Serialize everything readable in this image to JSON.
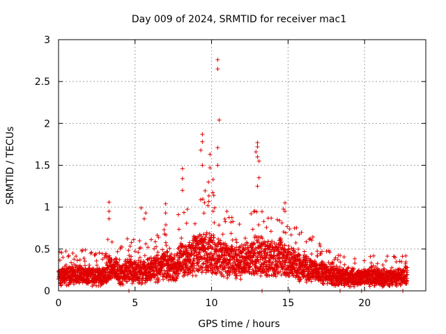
{
  "chart_data": {
    "type": "scatter",
    "title": "Day 009 of 2024, SRMTID for receiver mac1",
    "xlabel": "GPS time / hours",
    "ylabel": "SRMTID / TECUs",
    "xlim": [
      0,
      24
    ],
    "ylim": [
      0,
      3
    ],
    "xticks": [
      0,
      5,
      10,
      15,
      20
    ],
    "yticks": [
      0,
      0.5,
      1,
      1.5,
      2,
      2.5,
      3
    ],
    "xtick_labels": [
      "0",
      "5",
      "10",
      "15",
      "20"
    ],
    "ytick_labels": [
      "0",
      "0.5",
      "1",
      "1.5",
      "2",
      "2.5",
      "3"
    ],
    "grid": true,
    "marker": "plus",
    "color": "#e00000",
    "series": [
      {
        "name": "SRMTID",
        "profile_hours": [
          0,
          1,
          2,
          3,
          3.3,
          4,
          4.6,
          5,
          5.5,
          6,
          6.6,
          7,
          7.5,
          8,
          8.5,
          9,
          9.5,
          10,
          10.5,
          11,
          11.5,
          12,
          12.5,
          13,
          13.5,
          14,
          14.5,
          15,
          16,
          17,
          18,
          19,
          20,
          21,
          22,
          22.8
        ],
        "profile_median_tecu": [
          0.2,
          0.22,
          0.2,
          0.2,
          0.3,
          0.22,
          0.3,
          0.25,
          0.25,
          0.28,
          0.3,
          0.35,
          0.3,
          0.42,
          0.42,
          0.48,
          0.5,
          0.5,
          0.45,
          0.42,
          0.38,
          0.38,
          0.42,
          0.5,
          0.42,
          0.42,
          0.45,
          0.35,
          0.3,
          0.25,
          0.2,
          0.18,
          0.17,
          0.18,
          0.18,
          0.2
        ],
        "outliers": [
          {
            "x": 3.3,
            "y": 1.06
          },
          {
            "x": 3.3,
            "y": 0.95
          },
          {
            "x": 3.3,
            "y": 0.86
          },
          {
            "x": 5.4,
            "y": 0.99
          },
          {
            "x": 5.7,
            "y": 0.93
          },
          {
            "x": 5.6,
            "y": 0.86
          },
          {
            "x": 7.0,
            "y": 1.04
          },
          {
            "x": 7.0,
            "y": 0.93
          },
          {
            "x": 8.1,
            "y": 1.46
          },
          {
            "x": 8.1,
            "y": 1.34
          },
          {
            "x": 8.1,
            "y": 1.2
          },
          {
            "x": 9.4,
            "y": 1.87
          },
          {
            "x": 9.4,
            "y": 1.78
          },
          {
            "x": 9.3,
            "y": 1.68
          },
          {
            "x": 9.4,
            "y": 1.5
          },
          {
            "x": 9.9,
            "y": 1.63
          },
          {
            "x": 9.9,
            "y": 1.47
          },
          {
            "x": 9.8,
            "y": 1.3
          },
          {
            "x": 10.1,
            "y": 1.33
          },
          {
            "x": 10.4,
            "y": 2.76
          },
          {
            "x": 10.4,
            "y": 2.65
          },
          {
            "x": 10.5,
            "y": 2.04
          },
          {
            "x": 10.4,
            "y": 1.71
          },
          {
            "x": 10.4,
            "y": 1.5
          },
          {
            "x": 12.9,
            "y": 1.66
          },
          {
            "x": 13.0,
            "y": 1.77
          },
          {
            "x": 13.0,
            "y": 1.72
          },
          {
            "x": 13.0,
            "y": 1.6
          },
          {
            "x": 13.1,
            "y": 1.55
          },
          {
            "x": 13.1,
            "y": 1.35
          },
          {
            "x": 13.0,
            "y": 1.25
          },
          {
            "x": 14.8,
            "y": 1.05
          },
          {
            "x": 14.8,
            "y": 0.95
          },
          {
            "x": 4.6,
            "y": 0.0
          },
          {
            "x": 13.3,
            "y": 0.0
          },
          {
            "x": 15.1,
            "y": 0.0
          },
          {
            "x": 18.4,
            "y": 0.0
          },
          {
            "x": 19.8,
            "y": 0.0
          },
          {
            "x": 22.5,
            "y": 0.0
          }
        ]
      }
    ]
  }
}
